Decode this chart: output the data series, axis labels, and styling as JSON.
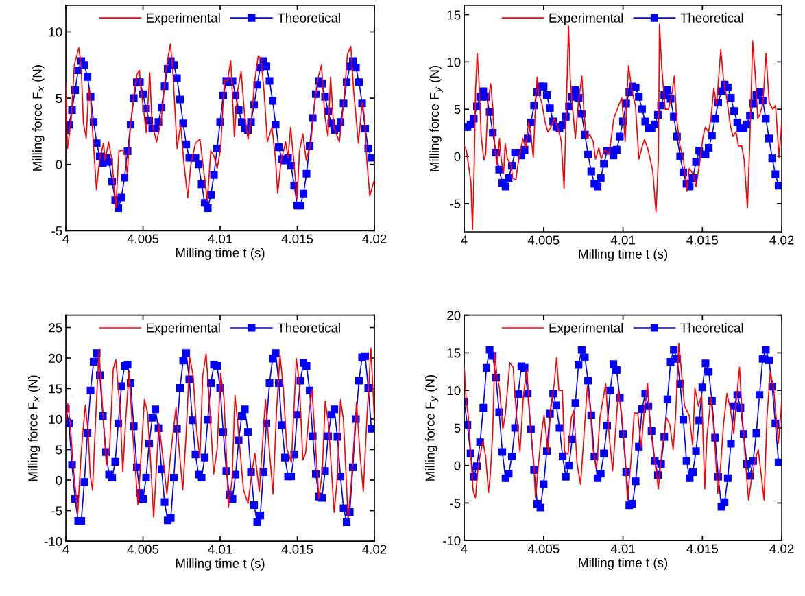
{
  "chart_data": [
    {
      "type": "line",
      "xlabel": "Milling time t (s)",
      "ylabel": "Milling force F$_{x}$ (N)",
      "xlim": [
        4,
        4.02
      ],
      "xticks": [
        4,
        4.005,
        4.01,
        4.015,
        4.02
      ],
      "ylim": [
        -5,
        12
      ],
      "yticks": [
        -5,
        0,
        5,
        10
      ],
      "legend": "top",
      "grid": false,
      "x": [
        4,
        4.0002,
        4.0004,
        4.0006,
        4.0008,
        4.001,
        4.0012,
        4.0014,
        4.0016,
        4.0018,
        4.002,
        4.0022,
        4.0024,
        4.0026,
        4.0028,
        4.003,
        4.0032,
        4.0034,
        4.0036,
        4.0038,
        4.004,
        4.0042,
        4.0044,
        4.0046,
        4.0048,
        4.005,
        4.0052,
        4.0054,
        4.0056,
        4.0058,
        4.006,
        4.0062,
        4.0064,
        4.0066,
        4.0068,
        4.007,
        4.0072,
        4.0074,
        4.0076,
        4.0078,
        4.008,
        4.0082,
        4.0084,
        4.0086,
        4.0088,
        4.009,
        4.0092,
        4.0094,
        4.0096,
        4.0098,
        4.01,
        4.0102,
        4.0104,
        4.0106,
        4.0108,
        4.011,
        4.0112,
        4.0114,
        4.0116,
        4.0118,
        4.012,
        4.0122,
        4.0124,
        4.0126,
        4.0128,
        4.013,
        4.0132,
        4.0134,
        4.0136,
        4.0138,
        4.014,
        4.0142,
        4.0144,
        4.0146,
        4.0148,
        4.015,
        4.0152,
        4.0154,
        4.0156,
        4.0158,
        4.016,
        4.0162,
        4.0164,
        4.0166,
        4.0168,
        4.017,
        4.0172,
        4.0174,
        4.0176,
        4.0178,
        4.018,
        4.0182,
        4.0184,
        4.0186,
        4.0188,
        4.019,
        4.0192,
        4.0194,
        4.0196,
        4.0198
      ],
      "series": [
        {
          "name": "Experimental",
          "color": "#ff0000",
          "marker": "none",
          "x": [
            4.0,
            4.0001,
            4.00033,
            4.00055,
            4.00084,
            4.00099,
            4.00114,
            4.00132,
            4.00148,
            4.00158,
            4.00176,
            4.00198,
            4.00218,
            4.00244,
            4.00255,
            4.00277,
            4.00299,
            4.00324,
            4.00344,
            4.00366,
            4.00384,
            4.00398,
            4.00418,
            4.0044,
            4.00462,
            4.00477,
            4.00484,
            4.00502,
            4.00521,
            4.00544,
            4.00558,
            4.00588,
            4.00618,
            4.00647,
            4.00677,
            4.00692,
            4.00721,
            4.00744,
            4.00766,
            4.0079,
            4.0081,
            4.0084,
            4.00869,
            4.00892,
            4.00917,
            4.00939,
            4.00958,
            4.00981,
            4.01003,
            4.01028,
            4.01047,
            4.01069,
            4.01092,
            4.01114,
            4.01136,
            4.01158,
            4.01181,
            4.01203,
            4.01225,
            4.01247,
            4.01265,
            4.01284,
            4.01306,
            4.01336,
            4.01358,
            4.01373,
            4.01395,
            4.01425,
            4.0144,
            4.01457,
            4.01477,
            4.01499,
            4.01514,
            4.01536,
            4.01558,
            4.01588,
            4.01617,
            4.01632,
            4.01657,
            4.01677,
            4.01699,
            4.01716,
            4.01736,
            4.01773,
            4.01803,
            4.01825,
            4.01847,
            4.01865,
            4.01896,
            4.01921,
            4.01936,
            4.01951,
            4.0197,
            4.01988,
            4.02
          ],
          "values": [
            6.1,
            1.2,
            3.1,
            7.5,
            8.8,
            7.5,
            3.1,
            2.0,
            5.7,
            5.2,
            2.1,
            -1.9,
            0.3,
            1.6,
            0.3,
            1.7,
            0.3,
            -3.3,
            1.0,
            1.1,
            0.7,
            -0.7,
            2.8,
            5.2,
            6.8,
            7.1,
            5.9,
            4.3,
            2.4,
            6.9,
            3.1,
            1.7,
            3.3,
            6.9,
            9.1,
            7.3,
            1.2,
            3.0,
            0.0,
            -2.5,
            0.0,
            1.6,
            1.9,
            -0.3,
            -2.8,
            1.0,
            0.7,
            -0.3,
            1.2,
            6.4,
            6.3,
            7.8,
            2.1,
            5.6,
            7.0,
            3.8,
            1.9,
            3.5,
            6.4,
            8.2,
            7.9,
            5.6,
            1.7,
            2.8,
            0.5,
            -2.2,
            0.3,
            1.7,
            0.5,
            2.8,
            0.3,
            -2.6,
            1.0,
            2.3,
            0.3,
            1.7,
            5.2,
            6.4,
            7.5,
            3.8,
            2.1,
            6.6,
            2.8,
            1.7,
            4.9,
            8.3,
            8.9,
            5.6,
            1.6,
            4.7,
            3.5,
            0.3,
            -2.4,
            -1.6,
            -1.2
          ]
        },
        {
          "name": "Theoretical",
          "color": "#0000ff",
          "marker": "square",
          "values": [
            2.6,
            3.0,
            4.1,
            5.6,
            7.1,
            7.8,
            7.5,
            6.6,
            5.1,
            3.2,
            1.6,
            0.6,
            0.1,
            0.5,
            0.2,
            -1.3,
            -2.7,
            -3.3,
            -2.5,
            -1.0,
            1.0,
            3.0,
            5.0,
            6.2,
            6.2,
            5.3,
            4.2,
            3.3,
            2.7,
            2.7,
            3.2,
            4.3,
            5.9,
            7.2,
            7.8,
            7.5,
            6.5,
            4.9,
            3.1,
            1.5,
            0.5,
            0.5,
            0.5,
            0.0,
            -1.5,
            -2.9,
            -3.3,
            -2.3,
            -0.8,
            1.2,
            3.2,
            5.2,
            6.3,
            6.2,
            6.3,
            5.2,
            4.1,
            3.2,
            2.7,
            2.6,
            3.2,
            4.5,
            6.0,
            7.3,
            7.8,
            7.4,
            6.3,
            4.8,
            3.0,
            1.3,
            0.4,
            0.3,
            0.5,
            -0.1,
            -1.6,
            -3.1,
            -3.1,
            -2.2,
            -0.7,
            1.4,
            3.5,
            5.3,
            6.3,
            6.1,
            5.1,
            4.0,
            3.1,
            2.6,
            2.7,
            3.2,
            4.6,
            6.2,
            7.4,
            7.8,
            7.3,
            6.2,
            4.6,
            2.7,
            1.2,
            0.5
          ]
        }
      ]
    },
    {
      "type": "line",
      "xlabel": "Milling time t (s)",
      "ylabel": "Milling force F$_{y}$ (N)",
      "xlim": [
        4,
        4.02
      ],
      "xticks": [
        4,
        4.005,
        4.01,
        4.015,
        4.02
      ],
      "ylim": [
        -8,
        16
      ],
      "yticks": [
        -5,
        0,
        5,
        10,
        15
      ],
      "legend": "top",
      "grid": false,
      "x": [
        4,
        4.0002,
        4.0004,
        4.0006,
        4.0008,
        4.001,
        4.0012,
        4.0014,
        4.0016,
        4.0018,
        4.002,
        4.0022,
        4.0024,
        4.0026,
        4.0028,
        4.003,
        4.0032,
        4.0034,
        4.0036,
        4.0038,
        4.004,
        4.0042,
        4.0044,
        4.0046,
        4.0048,
        4.005,
        4.0052,
        4.0054,
        4.0056,
        4.0058,
        4.006,
        4.0062,
        4.0064,
        4.0066,
        4.0068,
        4.007,
        4.0072,
        4.0074,
        4.0076,
        4.0078,
        4.008,
        4.0082,
        4.0084,
        4.0086,
        4.0088,
        4.009,
        4.0092,
        4.0094,
        4.0096,
        4.0098,
        4.01,
        4.0102,
        4.0104,
        4.0106,
        4.0108,
        4.011,
        4.0112,
        4.0114,
        4.0116,
        4.0118,
        4.012,
        4.0122,
        4.0124,
        4.0126,
        4.0128,
        4.013,
        4.0132,
        4.0134,
        4.0136,
        4.0138,
        4.014,
        4.0142,
        4.0144,
        4.0146,
        4.0148,
        4.015,
        4.0152,
        4.0154,
        4.0156,
        4.0158,
        4.016,
        4.0162,
        4.0164,
        4.0166,
        4.0168,
        4.017,
        4.0172,
        4.0174,
        4.0176,
        4.0178,
        4.018,
        4.0182,
        4.0184,
        4.0186,
        4.0188,
        4.019,
        4.0192,
        4.0194,
        4.0196,
        4.0198
      ],
      "series": [
        {
          "name": "Experimental",
          "color": "#ff0000",
          "marker": "none",
          "x": [
            4.0,
            4.00013,
            4.00027,
            4.00042,
            4.00052,
            4.00063,
            4.00071,
            4.00082,
            4.00092,
            4.00107,
            4.00124,
            4.00135,
            4.0015,
            4.00167,
            4.00179,
            4.00193,
            4.00207,
            4.00222,
            4.00233,
            4.00248,
            4.00258,
            4.00272,
            4.00294,
            4.00305,
            4.00325,
            4.00337,
            4.00358,
            4.00369,
            4.00387,
            4.00405,
            4.0042,
            4.00435,
            4.00449,
            4.00459,
            4.00471,
            4.00488,
            4.0051,
            4.00527,
            4.00546,
            4.00567,
            4.00589,
            4.00611,
            4.00629,
            4.00642,
            4.00657,
            4.00668,
            4.00683,
            4.007,
            4.00719,
            4.00741,
            4.00755,
            4.00769,
            4.00791,
            4.00812,
            4.00827,
            4.00848,
            4.00863,
            4.00884,
            4.00913,
            4.00942,
            4.00971,
            4.00992,
            4.01014,
            4.01025,
            4.01035,
            4.01057,
            4.01079,
            4.011,
            4.01122,
            4.01136,
            4.01158,
            4.01187,
            4.01208,
            4.01223,
            4.0123,
            4.01244,
            4.01266,
            4.01287,
            4.01309,
            4.01323,
            4.01338,
            4.01359,
            4.01381,
            4.01403,
            4.01417,
            4.01439,
            4.0146,
            4.01482,
            4.01503,
            4.01518,
            4.01539,
            4.01554,
            4.01572,
            4.0159,
            4.01616,
            4.01633,
            4.01655,
            4.01676,
            4.01693,
            4.01712,
            4.01727,
            4.01748,
            4.01763,
            4.01784,
            4.01799,
            4.01817,
            4.01835,
            4.01849,
            4.01863,
            4.01882,
            4.01901,
            4.01921,
            4.01943,
            4.01961,
            4.01983,
            4.02
          ],
          "values": [
            1.1,
            0.7,
            -1.0,
            -2.7,
            -7.8,
            -0.8,
            6.9,
            10.9,
            8.2,
            2.1,
            -0.4,
            0.2,
            6.0,
            7.7,
            5.3,
            0.9,
            -0.9,
            1.9,
            -0.3,
            -1.8,
            1.4,
            -0.3,
            -0.8,
            -2.3,
            -2.5,
            -1.0,
            0.9,
            1.9,
            0.9,
            3.6,
            2.3,
            -0.1,
            5.5,
            8.4,
            6.5,
            5.7,
            3.6,
            2.6,
            3.1,
            4.0,
            3.1,
            1.6,
            -3.4,
            4.5,
            13.8,
            8.2,
            5.0,
            1.9,
            5.7,
            8.5,
            4.5,
            1.9,
            2.3,
            1.6,
            -0.3,
            0.9,
            -0.3,
            0.7,
            0.2,
            4.0,
            5.3,
            6.2,
            1.6,
            6.5,
            9.6,
            6.9,
            5.3,
            -0.3,
            1.1,
            1.8,
            0.7,
            -1.5,
            -5.9,
            -0.3,
            14.0,
            9.4,
            5.0,
            5.0,
            6.7,
            8.5,
            4.0,
            1.1,
            -0.3,
            -3.7,
            -1.3,
            -1.8,
            -3.2,
            -0.8,
            1.9,
            3.1,
            2.6,
            4.0,
            7.2,
            5.5,
            11.3,
            8.2,
            6.0,
            3.3,
            2.1,
            2.6,
            1.1,
            1.1,
            -0.3,
            -5.5,
            1.6,
            12.2,
            8.2,
            4.0,
            4.5,
            5.6,
            10.9,
            5.7,
            5.0,
            5.4,
            -0.1,
            3.6
          ]
        },
        {
          "name": "Theoretical",
          "color": "#0000ff",
          "marker": "square",
          "values": [
            3.1,
            3.1,
            3.4,
            4.0,
            5.3,
            6.3,
            6.9,
            6.3,
            4.7,
            2.5,
            0.4,
            -1.4,
            -2.8,
            -3.2,
            -2.3,
            -1.0,
            0.4,
            0.4,
            0.1,
            0.7,
            1.9,
            3.6,
            5.4,
            6.8,
            7.4,
            7.4,
            6.5,
            5.1,
            3.7,
            3.1,
            3.0,
            3.3,
            4.2,
            5.3,
            6.3,
            7.0,
            6.2,
            4.5,
            2.3,
            0.2,
            -1.6,
            -2.9,
            -3.2,
            -2.3,
            -0.8,
            0.6,
            0.6,
            0.1,
            0.7,
            2.1,
            3.7,
            5.6,
            6.8,
            7.4,
            7.3,
            6.3,
            5.0,
            3.7,
            3.0,
            3.0,
            3.4,
            4.4,
            5.4,
            6.5,
            7.0,
            6.1,
            4.2,
            2.1,
            0.0,
            -1.7,
            -2.9,
            -3.2,
            -2.3,
            -0.6,
            0.6,
            0.2,
            0.2,
            0.9,
            2.2,
            4.0,
            5.7,
            6.9,
            7.6,
            7.3,
            6.2,
            4.8,
            3.6,
            3.0,
            3.0,
            3.4,
            4.3,
            5.6,
            6.5,
            6.8,
            5.9,
            4.0,
            1.9,
            -0.2,
            -1.9,
            -3.1
          ]
        }
      ]
    },
    {
      "type": "line",
      "xlabel": "Milling time t (s)",
      "ylabel": "Milling force F$_{x}$ (N)",
      "xlim": [
        4,
        4.02
      ],
      "xticks": [
        4,
        4.005,
        4.01,
        4.015,
        4.02
      ],
      "ylim": [
        -10,
        27
      ],
      "yticks": [
        -10,
        -5,
        0,
        5,
        10,
        15,
        20,
        25
      ],
      "legend": "top",
      "grid": false,
      "x": [
        4,
        4.0002,
        4.0004,
        4.0006,
        4.0008,
        4.001,
        4.0012,
        4.0014,
        4.0016,
        4.0018,
        4.002,
        4.0022,
        4.0024,
        4.0026,
        4.0028,
        4.003,
        4.0032,
        4.0034,
        4.0036,
        4.0038,
        4.004,
        4.0042,
        4.0044,
        4.0046,
        4.0048,
        4.005,
        4.0052,
        4.0054,
        4.0056,
        4.0058,
        4.006,
        4.0062,
        4.0064,
        4.0066,
        4.0068,
        4.007,
        4.0072,
        4.0074,
        4.0076,
        4.0078,
        4.008,
        4.0082,
        4.0084,
        4.0086,
        4.0088,
        4.009,
        4.0092,
        4.0094,
        4.0096,
        4.0098,
        4.01,
        4.0102,
        4.0104,
        4.0106,
        4.0108,
        4.011,
        4.0112,
        4.0114,
        4.0116,
        4.0118,
        4.012,
        4.0122,
        4.0124,
        4.0126,
        4.0128,
        4.013,
        4.0132,
        4.0134,
        4.0136,
        4.0138,
        4.014,
        4.0142,
        4.0144,
        4.0146,
        4.0148,
        4.015,
        4.0152,
        4.0154,
        4.0156,
        4.0158,
        4.016,
        4.0162,
        4.0164,
        4.0166,
        4.0168,
        4.017,
        4.0172,
        4.0174,
        4.0176,
        4.0178,
        4.018,
        4.0182,
        4.0184,
        4.0186,
        4.0188,
        4.019,
        4.0192,
        4.0194,
        4.0196,
        4.0198
      ],
      "series": [
        {
          "name": "Experimental",
          "color": "#ff0000",
          "marker": "none",
          "x": [
            4.0,
            4.00013,
            4.00028,
            4.00047,
            4.00077,
            4.00099,
            4.00126,
            4.00144,
            4.00158,
            4.00173,
            4.00195,
            4.00215,
            4.00233,
            4.00262,
            4.00284,
            4.00307,
            4.00324,
            4.00351,
            4.00369,
            4.00388,
            4.0041,
            4.00432,
            4.00467,
            4.00487,
            4.00509,
            4.00529,
            4.00546,
            4.00569,
            4.00585,
            4.00603,
            4.00629,
            4.00655,
            4.00677,
            4.00714,
            4.00736,
            4.00758,
            4.00781,
            4.00803,
            4.00825,
            4.00847,
            4.00869,
            4.00887,
            4.00909,
            4.00932,
            4.00958,
            4.00981,
            4.01003,
            4.01025,
            4.01054,
            4.01077,
            4.01096,
            4.01114,
            4.01151,
            4.01181,
            4.01203,
            4.01225,
            4.01254,
            4.01294,
            4.01317,
            4.01343,
            4.01365,
            4.01388,
            4.0141,
            4.01432,
            4.01462,
            4.01494,
            4.01514,
            4.01536,
            4.01554,
            4.01577,
            4.01595,
            4.0164,
            4.01662,
            4.01681,
            4.01702,
            4.01739,
            4.01758,
            4.0178,
            4.01799,
            4.01829,
            4.01851,
            4.01884,
            4.01906,
            4.01928,
            4.01951,
            4.01977,
            4.02
          ],
          "values": [
            10.0,
            12.5,
            9.3,
            2.5,
            -5.5,
            4.4,
            12.3,
            8.2,
            0.7,
            -1.6,
            11.1,
            21.4,
            13.8,
            2.5,
            5.5,
            18.2,
            19.7,
            11.9,
            1.4,
            10.0,
            17.9,
            8.2,
            -4.0,
            3.7,
            13.2,
            11.1,
            4.4,
            -6.1,
            1.0,
            9.3,
            3.7,
            -2.3,
            3.7,
            11.9,
            4.4,
            -1.6,
            8.2,
            20.1,
            17.1,
            8.2,
            3.7,
            17.1,
            20.7,
            11.9,
            1.0,
            5.2,
            17.5,
            13.4,
            -4.4,
            -0.1,
            13.9,
            9.3,
            -1.6,
            -3.8,
            0.7,
            4.4,
            -1.9,
            13.2,
            5.5,
            -2.3,
            11.1,
            20.5,
            14.9,
            5.2,
            2.9,
            19.9,
            15.6,
            3.3,
            4.4,
            11.1,
            14.9,
            -3.1,
            1.4,
            13.0,
            9.3,
            -5.3,
            -0.1,
            13.2,
            10.0,
            -6.2,
            -0.1,
            12.8,
            4.4,
            -1.9,
            10.0,
            21.6,
            10.0
          ]
        },
        {
          "name": "Theoretical",
          "color": "#0000ff",
          "marker": "square",
          "values": [
            11.7,
            9.3,
            2.5,
            -3.1,
            -6.7,
            -6.7,
            -0.3,
            7.7,
            14.7,
            19.4,
            20.8,
            17.2,
            10.5,
            4.6,
            0.9,
            0.4,
            3.0,
            9.3,
            15.4,
            18.7,
            18.9,
            15.9,
            8.8,
            2.1,
            -2.1,
            -3.1,
            0.4,
            6.0,
            10.2,
            11.6,
            8.5,
            1.8,
            -3.6,
            -6.6,
            -6.2,
            0.4,
            8.4,
            15.1,
            19.6,
            20.8,
            16.5,
            9.8,
            4.2,
            0.9,
            0.4,
            3.7,
            9.9,
            15.9,
            18.9,
            18.7,
            15.1,
            7.9,
            1.5,
            -2.4,
            -3.1,
            0.9,
            6.5,
            10.5,
            11.6,
            7.9,
            1.3,
            -4.1,
            -6.9,
            -5.8,
            1.3,
            9.3,
            15.9,
            19.9,
            20.8,
            15.9,
            9.0,
            3.7,
            0.6,
            0.6,
            4.2,
            10.7,
            16.3,
            19.2,
            18.7,
            14.7,
            7.2,
            1.0,
            -2.7,
            -2.9,
            1.5,
            7.2,
            10.7,
            11.6,
            7.1,
            0.6,
            -4.6,
            -6.9,
            -5.2,
            2.1,
            10.0,
            16.3,
            20.1,
            20.3,
            15.1,
            8.4
          ]
        }
      ]
    },
    {
      "type": "line",
      "xlabel": "Milling time t (s)",
      "ylabel": "Milling force F$_{y}$ (N)",
      "xlim": [
        4,
        4.02
      ],
      "xticks": [
        4,
        4.005,
        4.01,
        4.015,
        4.02
      ],
      "ylim": [
        -10,
        20
      ],
      "yticks": [
        -10,
        -5,
        0,
        5,
        10,
        15,
        20
      ],
      "legend": "top",
      "grid": false,
      "x": [
        4,
        4.0002,
        4.0004,
        4.0006,
        4.0008,
        4.001,
        4.0012,
        4.0014,
        4.0016,
        4.0018,
        4.002,
        4.0022,
        4.0024,
        4.0026,
        4.0028,
        4.003,
        4.0032,
        4.0034,
        4.0036,
        4.0038,
        4.004,
        4.0042,
        4.0044,
        4.0046,
        4.0048,
        4.005,
        4.0052,
        4.0054,
        4.0056,
        4.0058,
        4.006,
        4.0062,
        4.0064,
        4.0066,
        4.0068,
        4.007,
        4.0072,
        4.0074,
        4.0076,
        4.0078,
        4.008,
        4.0082,
        4.0084,
        4.0086,
        4.0088,
        4.009,
        4.0092,
        4.0094,
        4.0096,
        4.0098,
        4.01,
        4.0102,
        4.0104,
        4.0106,
        4.0108,
        4.011,
        4.0112,
        4.0114,
        4.0116,
        4.0118,
        4.012,
        4.0122,
        4.0124,
        4.0126,
        4.0128,
        4.013,
        4.0132,
        4.0134,
        4.0136,
        4.0138,
        4.014,
        4.0142,
        4.0144,
        4.0146,
        4.0148,
        4.015,
        4.0152,
        4.0154,
        4.0156,
        4.0158,
        4.016,
        4.0162,
        4.0164,
        4.0166,
        4.0168,
        4.017,
        4.0172,
        4.0174,
        4.0176,
        4.0178,
        4.018,
        4.0182,
        4.0184,
        4.0186,
        4.0188,
        4.019,
        4.0192,
        4.0194,
        4.0196,
        4.0198
      ],
      "series": [
        {
          "name": "Experimental",
          "color": "#ff0000",
          "marker": "none",
          "x": [
            4.0,
            4.00013,
            4.00027,
            4.00042,
            4.00056,
            4.00071,
            4.00085,
            4.00099,
            4.00118,
            4.00135,
            4.00153,
            4.00164,
            4.00179,
            4.00193,
            4.00207,
            4.00222,
            4.00243,
            4.00258,
            4.00272,
            4.00287,
            4.00308,
            4.0033,
            4.00351,
            4.00373,
            4.00395,
            4.00416,
            4.00438,
            4.00449,
            4.00469,
            4.00488,
            4.00503,
            4.00527,
            4.00546,
            4.00567,
            4.00582,
            4.00596,
            4.00618,
            4.00632,
            4.00654,
            4.00675,
            4.0069,
            4.00711,
            4.00733,
            4.00755,
            4.00776,
            4.00791,
            4.00812,
            4.00834,
            4.00855,
            4.00877,
            4.00891,
            4.00913,
            4.00935,
            4.00949,
            4.00971,
            4.00992,
            4.01014,
            4.01028,
            4.0105,
            4.01071,
            4.01093,
            4.01115,
            4.01136,
            4.01155,
            4.01172,
            4.01201,
            4.01223,
            4.01244,
            4.01273,
            4.01295,
            4.01316,
            4.01331,
            4.01352,
            4.01371,
            4.01388,
            4.01417,
            4.01439,
            4.01453,
            4.01475,
            4.01496,
            4.01515,
            4.01529,
            4.01554,
            4.01575,
            4.01597,
            4.01616,
            4.01633,
            4.01655,
            4.01676,
            4.01698,
            4.01712,
            4.01734,
            4.01748,
            4.0177,
            4.01791,
            4.01813,
            4.01835,
            4.01852,
            4.01871,
            4.01889,
            4.01907,
            4.01928,
            4.0195,
            4.01979,
            4.02
          ],
          "values": [
            13.2,
            8.5,
            6.4,
            1.2,
            -3.4,
            -4.3,
            -0.7,
            1.2,
            3.3,
            1.2,
            -3.6,
            -1.3,
            4.2,
            14.9,
            11.8,
            10.3,
            4.8,
            6.7,
            10.0,
            13.7,
            13.1,
            6.4,
            1.8,
            9.4,
            12.8,
            5.4,
            0.2,
            -4.3,
            0.5,
            4.5,
            6.7,
            1.8,
            7.9,
            10.9,
            14.4,
            10.0,
            10.0,
            1.8,
            1.5,
            6.4,
            7.3,
            0.2,
            -2.5,
            4.2,
            10.6,
            8.2,
            2.1,
            -0.4,
            6.4,
            9.1,
            10.9,
            3.9,
            -0.7,
            3.3,
            10.0,
            6.7,
            1.2,
            -4.6,
            0.5,
            7.0,
            7.0,
            2.4,
            7.9,
            10.9,
            5.1,
            0.5,
            -3.1,
            1.8,
            6.4,
            5.4,
            2.1,
            6.4,
            16.3,
            11.8,
            7.9,
            6.7,
            2.7,
            10.3,
            7.9,
            9.4,
            -3.1,
            3.9,
            9.1,
            4.2,
            -3.7,
            0.2,
            5.4,
            9.6,
            7.6,
            4.2,
            8.2,
            13.1,
            7.9,
            0.9,
            -4.6,
            -1.3,
            0.9,
            2.1,
            -1.3,
            -4.6,
            6.4,
            12.5,
            10.0,
            3.0,
            8.5
          ]
        },
        {
          "name": "Theoretical",
          "color": "#0000ff",
          "marker": "square",
          "values": [
            8.5,
            5.4,
            1.6,
            -1.5,
            -0.1,
            3.1,
            7.7,
            13.0,
            15.4,
            14.6,
            11.7,
            7.1,
            1.8,
            -1.7,
            -1.1,
            1.2,
            5.0,
            9.5,
            13.2,
            13.0,
            9.6,
            4.8,
            -0.6,
            -5.1,
            -5.6,
            -2.5,
            1.9,
            6.9,
            9.6,
            8.0,
            5.0,
            1.2,
            -1.5,
            0.0,
            3.5,
            8.3,
            13.4,
            15.4,
            14.4,
            11.3,
            6.7,
            1.2,
            -1.7,
            -1.1,
            1.6,
            5.3,
            10.0,
            13.5,
            12.7,
            9.0,
            4.2,
            -0.9,
            -5.3,
            -5.1,
            -2.1,
            2.5,
            7.5,
            9.6,
            7.9,
            4.6,
            0.6,
            -1.3,
            0.2,
            3.8,
            8.8,
            13.8,
            15.4,
            14.2,
            10.9,
            6.1,
            0.6,
            -1.7,
            -0.9,
            1.9,
            6.0,
            10.4,
            13.6,
            12.5,
            8.6,
            3.7,
            -1.5,
            -5.5,
            -4.9,
            -1.7,
            2.9,
            7.9,
            9.4,
            7.7,
            4.2,
            0.2,
            -1.4,
            0.6,
            4.3,
            9.4,
            14.2,
            15.4,
            14.0,
            10.5,
            5.6,
            0.4
          ]
        }
      ]
    }
  ]
}
